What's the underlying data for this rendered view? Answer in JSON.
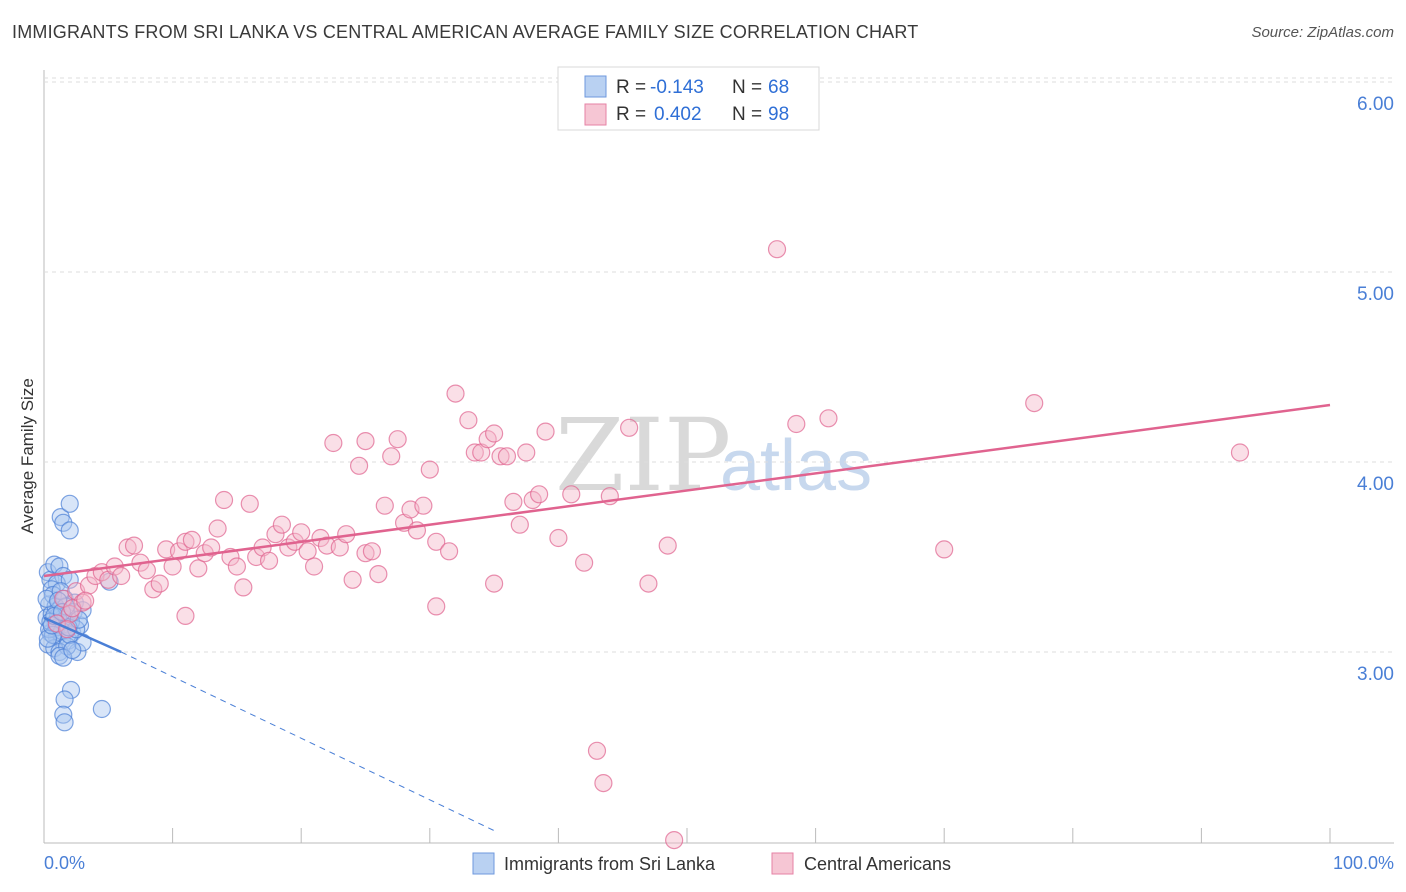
{
  "header": {
    "title": "IMMIGRANTS FROM SRI LANKA VS CENTRAL AMERICAN AVERAGE FAMILY SIZE CORRELATION CHART",
    "source": "Source: ZipAtlas.com"
  },
  "watermark": {
    "zip": "ZIP",
    "atlas": "atlas"
  },
  "colors": {
    "blue": "#4a7fd6",
    "blue_fill": "#a8c6f0",
    "pink": "#e0638f",
    "pink_fill": "#f5b8ca",
    "grid": "#dddddd",
    "tick_label": "#4a7fd6"
  },
  "stats": {
    "rows": [
      {
        "r_label": "R =",
        "r_value": "-0.143",
        "n_label": "N =",
        "n_value": "68",
        "series": "blue"
      },
      {
        "r_label": "R =",
        "r_value": "0.402",
        "n_label": "N =",
        "n_value": "98",
        "series": "pink"
      }
    ]
  },
  "chart_data": {
    "type": "scatter",
    "title": "IMMIGRANTS FROM SRI LANKA VS CENTRAL AMERICAN AVERAGE FAMILY SIZE CORRELATION CHART",
    "xlabel": "",
    "ylabel": "Average Family Size",
    "xlim": [
      0,
      100
    ],
    "ylim": [
      2.0,
      6.1
    ],
    "x_tick_labels": [
      "0.0%",
      "100.0%"
    ],
    "y_ticks": [
      3.0,
      4.0,
      5.0,
      6.0
    ],
    "y_tick_labels": [
      "3.00",
      "4.00",
      "5.00",
      "6.00"
    ],
    "grid": true,
    "legend_position": "bottom",
    "series": [
      {
        "name": "Immigrants from Sri Lanka",
        "color": "#4a7fd6",
        "r": -0.143,
        "n": 68,
        "trend": {
          "x0": 0.0,
          "y0": 3.18,
          "x1": 6.0,
          "y1": 3.0,
          "dash_to_x": 35.0,
          "dash_to_y": 2.06
        },
        "points": [
          [
            0.3,
            3.42
          ],
          [
            0.5,
            3.38
          ],
          [
            0.8,
            3.46
          ],
          [
            1.2,
            3.45
          ],
          [
            1.5,
            3.4
          ],
          [
            1.0,
            3.36
          ],
          [
            0.6,
            3.33
          ],
          [
            2.0,
            3.38
          ],
          [
            0.4,
            3.25
          ],
          [
            0.7,
            3.3
          ],
          [
            1.1,
            3.22
          ],
          [
            1.6,
            3.28
          ],
          [
            1.8,
            3.2
          ],
          [
            2.4,
            3.26
          ],
          [
            0.2,
            3.18
          ],
          [
            0.9,
            3.15
          ],
          [
            1.3,
            3.14
          ],
          [
            1.7,
            3.12
          ],
          [
            2.2,
            3.1
          ],
          [
            2.8,
            3.14
          ],
          [
            0.5,
            3.1
          ],
          [
            1.0,
            3.08
          ],
          [
            1.4,
            3.06
          ],
          [
            1.9,
            3.06
          ],
          [
            0.3,
            3.04
          ],
          [
            0.8,
            3.02
          ],
          [
            1.2,
            3.0
          ],
          [
            2.6,
            3.0
          ],
          [
            3.0,
            3.05
          ],
          [
            0.6,
            3.2
          ],
          [
            1.5,
            3.18
          ],
          [
            2.1,
            3.16
          ],
          [
            0.4,
            3.12
          ],
          [
            1.1,
            3.19
          ],
          [
            1.6,
            3.17
          ],
          [
            2.3,
            3.21
          ],
          [
            3.0,
            3.22
          ],
          [
            0.9,
            3.24
          ],
          [
            0.2,
            3.28
          ],
          [
            1.3,
            3.32
          ],
          [
            1.7,
            3.24
          ],
          [
            0.5,
            3.16
          ],
          [
            1.0,
            3.13
          ],
          [
            1.4,
            3.11
          ],
          [
            0.7,
            3.09
          ],
          [
            0.3,
            3.07
          ],
          [
            1.8,
            3.03
          ],
          [
            1.2,
            2.98
          ],
          [
            2.0,
            3.09
          ],
          [
            0.6,
            3.14
          ],
          [
            1.5,
            2.97
          ],
          [
            2.2,
            3.01
          ],
          [
            1.1,
            3.27
          ],
          [
            2.5,
            3.12
          ],
          [
            1.9,
            3.13
          ],
          [
            1.3,
            3.71
          ],
          [
            1.5,
            3.68
          ],
          [
            2.0,
            3.64
          ],
          [
            2.0,
            3.78
          ],
          [
            2.1,
            2.8
          ],
          [
            1.6,
            2.75
          ],
          [
            1.5,
            2.67
          ],
          [
            1.6,
            2.63
          ],
          [
            4.5,
            2.7
          ],
          [
            5.1,
            3.37
          ],
          [
            0.8,
            3.19
          ],
          [
            1.4,
            3.21
          ],
          [
            2.7,
            3.17
          ]
        ]
      },
      {
        "name": "Central Americans",
        "color": "#e0638f",
        "r": 0.402,
        "n": 98,
        "trend": {
          "x0": 0.0,
          "y0": 3.4,
          "x1": 100.0,
          "y1": 4.3
        },
        "points": [
          [
            1.5,
            3.28
          ],
          [
            2.0,
            3.2
          ],
          [
            2.5,
            3.32
          ],
          [
            3.0,
            3.26
          ],
          [
            3.5,
            3.35
          ],
          [
            1.0,
            3.15
          ],
          [
            2.2,
            3.23
          ],
          [
            1.8,
            3.12
          ],
          [
            3.2,
            3.27
          ],
          [
            4.0,
            3.4
          ],
          [
            4.5,
            3.42
          ],
          [
            5.0,
            3.38
          ],
          [
            5.5,
            3.45
          ],
          [
            6.0,
            3.4
          ],
          [
            6.5,
            3.55
          ],
          [
            7.0,
            3.56
          ],
          [
            7.5,
            3.47
          ],
          [
            8.0,
            3.43
          ],
          [
            8.5,
            3.33
          ],
          [
            9.0,
            3.36
          ],
          [
            9.5,
            3.54
          ],
          [
            10.0,
            3.45
          ],
          [
            10.5,
            3.53
          ],
          [
            11.0,
            3.58
          ],
          [
            11.5,
            3.59
          ],
          [
            12.0,
            3.44
          ],
          [
            12.5,
            3.52
          ],
          [
            13.0,
            3.55
          ],
          [
            13.5,
            3.65
          ],
          [
            14.0,
            3.8
          ],
          [
            14.5,
            3.5
          ],
          [
            15.0,
            3.45
          ],
          [
            15.5,
            3.34
          ],
          [
            16.0,
            3.78
          ],
          [
            16.5,
            3.5
          ],
          [
            17.0,
            3.55
          ],
          [
            17.5,
            3.48
          ],
          [
            18.0,
            3.62
          ],
          [
            18.5,
            3.67
          ],
          [
            19.0,
            3.55
          ],
          [
            19.5,
            3.58
          ],
          [
            20.0,
            3.63
          ],
          [
            20.5,
            3.53
          ],
          [
            21.0,
            3.45
          ],
          [
            21.5,
            3.6
          ],
          [
            22.0,
            3.56
          ],
          [
            22.5,
            4.1
          ],
          [
            23.0,
            3.55
          ],
          [
            23.5,
            3.62
          ],
          [
            24.0,
            3.38
          ],
          [
            24.5,
            3.98
          ],
          [
            25.0,
            3.52
          ],
          [
            25.5,
            3.53
          ],
          [
            26.0,
            3.41
          ],
          [
            26.5,
            3.77
          ],
          [
            27.0,
            4.03
          ],
          [
            27.5,
            4.12
          ],
          [
            28.0,
            3.68
          ],
          [
            28.5,
            3.75
          ],
          [
            29.0,
            3.64
          ],
          [
            29.5,
            3.77
          ],
          [
            30.0,
            3.96
          ],
          [
            30.5,
            3.58
          ],
          [
            31.5,
            3.53
          ],
          [
            32.0,
            4.36
          ],
          [
            33.0,
            4.22
          ],
          [
            33.5,
            4.05
          ],
          [
            34.0,
            4.05
          ],
          [
            34.5,
            4.12
          ],
          [
            35.0,
            4.15
          ],
          [
            35.5,
            4.03
          ],
          [
            36.0,
            4.03
          ],
          [
            36.5,
            3.79
          ],
          [
            37.0,
            3.67
          ],
          [
            37.5,
            4.05
          ],
          [
            38.0,
            3.8
          ],
          [
            38.5,
            3.83
          ],
          [
            39.0,
            4.16
          ],
          [
            40.0,
            3.6
          ],
          [
            41.0,
            3.83
          ],
          [
            42.0,
            3.47
          ],
          [
            44.0,
            3.82
          ],
          [
            45.5,
            4.18
          ],
          [
            47.0,
            3.36
          ],
          [
            48.5,
            3.56
          ],
          [
            57.0,
            5.12
          ],
          [
            58.5,
            4.2
          ],
          [
            61.0,
            4.23
          ],
          [
            70.0,
            3.54
          ],
          [
            77.0,
            4.31
          ],
          [
            93.0,
            4.05
          ],
          [
            25.0,
            4.11
          ],
          [
            30.5,
            3.24
          ],
          [
            35.0,
            3.36
          ],
          [
            43.0,
            2.48
          ],
          [
            43.5,
            2.31
          ],
          [
            49.0,
            2.01
          ],
          [
            11.0,
            3.19
          ]
        ]
      }
    ]
  }
}
